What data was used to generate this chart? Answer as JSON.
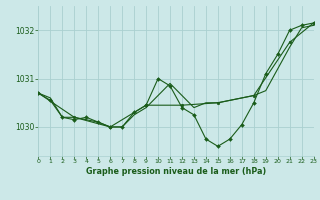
{
  "background_color": "#cce8e8",
  "grid_color": "#aad0d0",
  "line_color": "#1a5c1a",
  "title": "Graphe pression niveau de la mer (hPa)",
  "xlim": [
    0,
    23
  ],
  "ylim": [
    1029.4,
    1032.5
  ],
  "yticks": [
    1030,
    1031,
    1032
  ],
  "xticks": [
    0,
    1,
    2,
    3,
    4,
    5,
    6,
    7,
    8,
    9,
    10,
    11,
    12,
    13,
    14,
    15,
    16,
    17,
    18,
    19,
    20,
    21,
    22,
    23
  ],
  "series1_x": [
    0,
    1,
    2,
    3,
    4,
    5,
    6,
    7,
    8,
    9,
    10,
    11,
    12,
    13,
    14,
    15,
    16,
    17,
    18,
    19,
    20,
    21,
    22,
    23
  ],
  "series1_y": [
    1030.7,
    1030.6,
    1030.2,
    1030.2,
    1030.15,
    1030.1,
    1030.0,
    1030.0,
    1030.25,
    1030.4,
    1030.65,
    1030.9,
    1030.65,
    1030.4,
    1030.5,
    1030.5,
    1030.55,
    1030.6,
    1030.65,
    1030.75,
    1031.2,
    1031.65,
    1032.05,
    1032.1
  ],
  "series2_x": [
    0,
    1,
    2,
    3,
    4,
    5,
    6,
    7,
    8,
    9,
    10,
    11,
    12,
    13,
    14,
    15,
    16,
    17,
    18,
    19,
    20,
    21,
    22,
    23
  ],
  "series2_y": [
    1030.7,
    1030.55,
    1030.2,
    1030.15,
    1030.2,
    1030.1,
    1030.0,
    1030.0,
    1030.3,
    1030.45,
    1031.0,
    1030.85,
    1030.4,
    1030.25,
    1029.75,
    1029.6,
    1029.75,
    1030.05,
    1030.5,
    1031.1,
    1031.5,
    1032.0,
    1032.1,
    1032.15
  ],
  "series3_x": [
    0,
    3,
    6,
    9,
    12,
    15,
    18,
    21,
    23
  ],
  "series3_y": [
    1030.7,
    1030.2,
    1030.0,
    1030.45,
    1030.45,
    1030.5,
    1030.65,
    1031.75,
    1032.15
  ],
  "figsize": [
    3.2,
    2.0
  ],
  "dpi": 100
}
